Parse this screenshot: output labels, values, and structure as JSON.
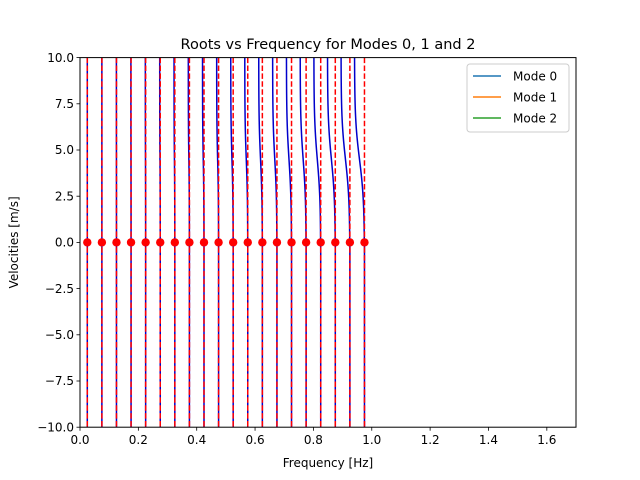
{
  "chart_data": {
    "type": "line",
    "title": "Roots vs Frequency for Modes 0, 1 and 2",
    "xlabel": "Frequency [Hz]",
    "ylabel": "Velocities [m/s]",
    "xlim": [
      0.0,
      1.7
    ],
    "ylim": [
      -10.0,
      10.0
    ],
    "xticks": [
      "0.0",
      "0.2",
      "0.4",
      "0.6",
      "0.8",
      "1.0",
      "1.2",
      "1.4",
      "1.6"
    ],
    "yticks": [
      "−10.0",
      "−7.5",
      "−5.0",
      "−2.5",
      "0.0",
      "2.5",
      "5.0",
      "7.5",
      "10.0"
    ],
    "grid": false,
    "legend_position": "top-right",
    "series": [
      {
        "name": "Mode 0",
        "color": "#1f77b4"
      },
      {
        "name": "Mode 1",
        "color": "#ff7f0e"
      },
      {
        "name": "Mode 2",
        "color": "#2ca02c"
      }
    ],
    "asymptote_style": {
      "color": "#ff0000",
      "linestyle": "dashed"
    },
    "root_curve_color": "#0000cc",
    "root_marker_color": "#ff0000",
    "asymptotes_x": [
      0.025,
      0.075,
      0.125,
      0.175,
      0.225,
      0.275,
      0.325,
      0.375,
      0.425,
      0.475,
      0.525,
      0.575,
      0.625,
      0.675,
      0.725,
      0.775,
      0.825,
      0.875,
      0.925,
      0.975
    ],
    "roots_x": [
      0.025,
      0.075,
      0.125,
      0.175,
      0.225,
      0.275,
      0.325,
      0.375,
      0.425,
      0.475,
      0.525,
      0.575,
      0.625,
      0.675,
      0.725,
      0.775,
      0.825,
      0.875,
      0.925,
      0.975
    ],
    "roots_y": [
      0,
      0,
      0,
      0,
      0,
      0,
      0,
      0,
      0,
      0,
      0,
      0,
      0,
      0,
      0,
      0,
      0,
      0,
      0,
      0
    ]
  }
}
